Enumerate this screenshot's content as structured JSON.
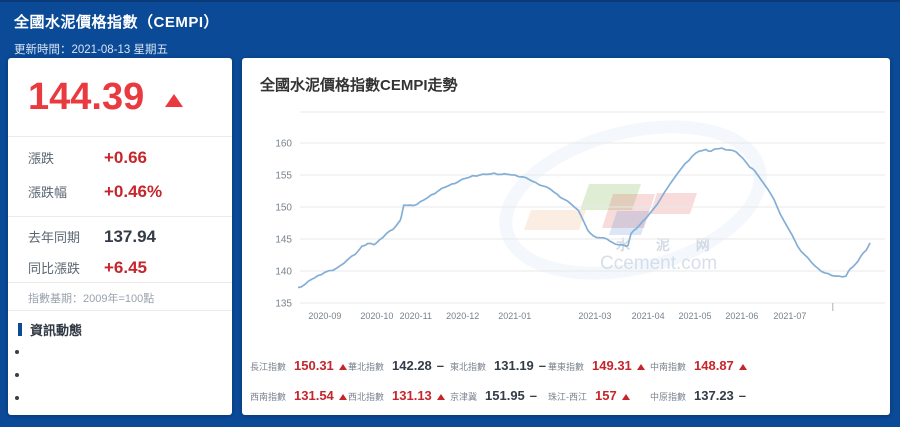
{
  "header": {
    "title": "全國水泥價格指數（CEMPI）",
    "update_time": "更新時間：2021-08-13 星期五"
  },
  "summary": {
    "value": "144.39",
    "trend": "up",
    "rows": [
      {
        "label": "漲跌",
        "value": "+0.66"
      },
      {
        "label": "漲跌幅",
        "value": "+0.46%"
      },
      {
        "label": "去年同期",
        "value": "137.94"
      },
      {
        "label": "同比漲跌",
        "value": "+6.45"
      }
    ],
    "base_note": "指數基期：2009年=100點"
  },
  "news": {
    "title": "資訊動態",
    "items": [
      "",
      "",
      ""
    ]
  },
  "watermark": {
    "line1": "水 泥 网",
    "line2": "Ccement.com"
  },
  "chart_data": {
    "type": "line",
    "title": "全國水泥價格指數CEMPI走勢",
    "x_range": [
      "2020-08",
      "2021-08"
    ],
    "ylim": [
      135,
      163
    ],
    "yticks": [
      135,
      140,
      145,
      150,
      155,
      160
    ],
    "grid": true,
    "legend": false,
    "x_labels": [
      {
        "label": "2020-09",
        "f": 0.047
      },
      {
        "label": "2020-10",
        "f": 0.138
      },
      {
        "label": "2020-11",
        "f": 0.206
      },
      {
        "label": "2020-12",
        "f": 0.288
      },
      {
        "label": "2021-01",
        "f": 0.379
      },
      {
        "label": "2021-03",
        "f": 0.519
      },
      {
        "label": "2021-04",
        "f": 0.612
      },
      {
        "label": "2021-05",
        "f": 0.694
      },
      {
        "label": "2021-06",
        "f": 0.776
      },
      {
        "label": "2021-07",
        "f": 0.86
      }
    ],
    "end_tick_f": 0.935,
    "series": [
      {
        "name": "CEMPI",
        "color": "#84aed6",
        "points": [
          [
            0,
            137.4
          ],
          [
            0.012,
            137.9
          ],
          [
            0.024,
            138.7
          ],
          [
            0.035,
            139.3
          ],
          [
            0.047,
            139.8
          ],
          [
            0.061,
            140.1
          ],
          [
            0.073,
            140.8
          ],
          [
            0.087,
            141.8
          ],
          [
            0.1,
            142.6
          ],
          [
            0.112,
            143.9
          ],
          [
            0.122,
            144.3
          ],
          [
            0.133,
            144.1
          ],
          [
            0.143,
            144.9
          ],
          [
            0.154,
            145.8
          ],
          [
            0.166,
            146.5
          ],
          [
            0.177,
            147.7
          ],
          [
            0.18,
            148.3
          ],
          [
            0.185,
            150.3
          ],
          [
            0.196,
            150.3
          ],
          [
            0.208,
            150.4
          ],
          [
            0.22,
            151.1
          ],
          [
            0.233,
            151.9
          ],
          [
            0.245,
            152.5
          ],
          [
            0.257,
            153.1
          ],
          [
            0.269,
            153.6
          ],
          [
            0.281,
            154
          ],
          [
            0.294,
            154.5
          ],
          [
            0.306,
            154.9
          ],
          [
            0.318,
            155
          ],
          [
            0.33,
            155.1
          ],
          [
            0.343,
            155.3
          ],
          [
            0.355,
            155.1
          ],
          [
            0.367,
            155.1
          ],
          [
            0.379,
            155
          ],
          [
            0.392,
            154.7
          ],
          [
            0.404,
            154.3
          ],
          [
            0.416,
            153.8
          ],
          [
            0.428,
            153.3
          ],
          [
            0.441,
            152.8
          ],
          [
            0.453,
            152
          ],
          [
            0.465,
            151.2
          ],
          [
            0.477,
            150.5
          ],
          [
            0.49,
            149.5
          ],
          [
            0.498,
            148
          ],
          [
            0.507,
            146.3
          ],
          [
            0.516,
            145.5
          ],
          [
            0.528,
            145.2
          ],
          [
            0.54,
            145
          ],
          [
            0.549,
            144.5
          ],
          [
            0.561,
            144.1
          ],
          [
            0.573,
            143.9
          ],
          [
            0.577,
            144
          ],
          [
            0.582,
            145.8
          ],
          [
            0.591,
            146.6
          ],
          [
            0.603,
            147.8
          ],
          [
            0.615,
            149
          ],
          [
            0.628,
            150.4
          ],
          [
            0.64,
            152.2
          ],
          [
            0.652,
            153.8
          ],
          [
            0.664,
            155.3
          ],
          [
            0.677,
            156.8
          ],
          [
            0.689,
            157.9
          ],
          [
            0.701,
            158.7
          ],
          [
            0.713,
            159
          ],
          [
            0.722,
            158.7
          ],
          [
            0.731,
            159.1
          ],
          [
            0.741,
            159.2
          ],
          [
            0.754,
            158.9
          ],
          [
            0.766,
            158.6
          ],
          [
            0.778,
            157.6
          ],
          [
            0.79,
            156.2
          ],
          [
            0.799,
            155.6
          ],
          [
            0.81,
            154.2
          ],
          [
            0.822,
            152.7
          ],
          [
            0.832,
            151.2
          ],
          [
            0.843,
            148.9
          ],
          [
            0.853,
            147.3
          ],
          [
            0.864,
            145.6
          ],
          [
            0.874,
            143.8
          ],
          [
            0.885,
            142.6
          ],
          [
            0.897,
            141.4
          ],
          [
            0.909,
            140.4
          ],
          [
            0.921,
            139.7
          ],
          [
            0.933,
            139.3
          ],
          [
            0.946,
            139.2
          ],
          [
            0.958,
            139.2
          ],
          [
            0.965,
            140.3
          ],
          [
            0.974,
            141
          ],
          [
            0.984,
            142.3
          ],
          [
            0.993,
            143.2
          ],
          [
            1,
            144.39
          ]
        ]
      }
    ]
  },
  "indices": {
    "rows": [
      [
        {
          "name": "長江指數",
          "value": "150.31",
          "trend": "up"
        },
        {
          "name": "華北指數",
          "value": "142.28",
          "trend": "flat"
        },
        {
          "name": "東北指數",
          "value": "131.19",
          "trend": "flat"
        },
        {
          "name": "華東指數",
          "value": "149.31",
          "trend": "up"
        },
        {
          "name": "中南指數",
          "value": "148.87",
          "trend": "up"
        }
      ],
      [
        {
          "name": "西南指數",
          "value": "131.54",
          "trend": "up"
        },
        {
          "name": "西北指數",
          "value": "131.13",
          "trend": "up"
        },
        {
          "name": "京津冀",
          "value": "151.95",
          "trend": "flat"
        },
        {
          "name": "珠江-西江",
          "value": "157",
          "trend": "up"
        },
        {
          "name": "中原指數",
          "value": "137.23",
          "trend": "flat"
        }
      ]
    ],
    "colors": {
      "up": "#c5262c",
      "flat": "#333c48"
    }
  }
}
